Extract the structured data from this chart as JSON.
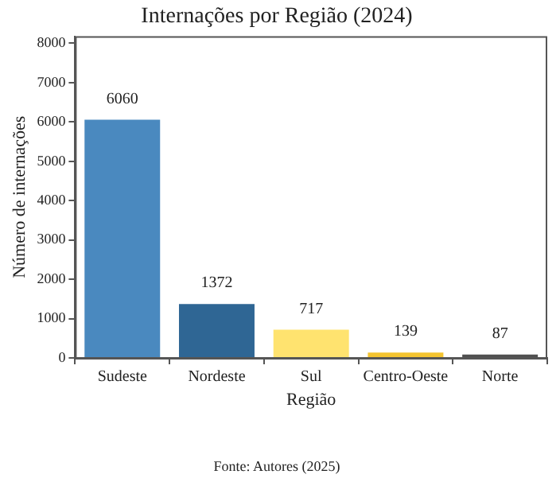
{
  "chart_data": {
    "type": "bar",
    "title": "Internações por Região (2024)",
    "xlabel": "Região",
    "ylabel": "Número de internações",
    "categories": [
      "Sudeste",
      "Nordeste",
      "Sul",
      "Centro-Oeste",
      "Norte"
    ],
    "values": [
      6060,
      1372,
      717,
      139,
      87
    ],
    "colors": [
      "#4a89bf",
      "#2f6694",
      "#ffe36f",
      "#f4c430",
      "#505050"
    ],
    "ylim": [
      0,
      8180
    ],
    "yticks": [
      0,
      1000,
      2000,
      3000,
      4000,
      5000,
      6000,
      7000,
      8000
    ],
    "data_labels": true,
    "grid": false,
    "legend": false,
    "annotations": [
      "Fonte: Autores (2025)"
    ]
  }
}
